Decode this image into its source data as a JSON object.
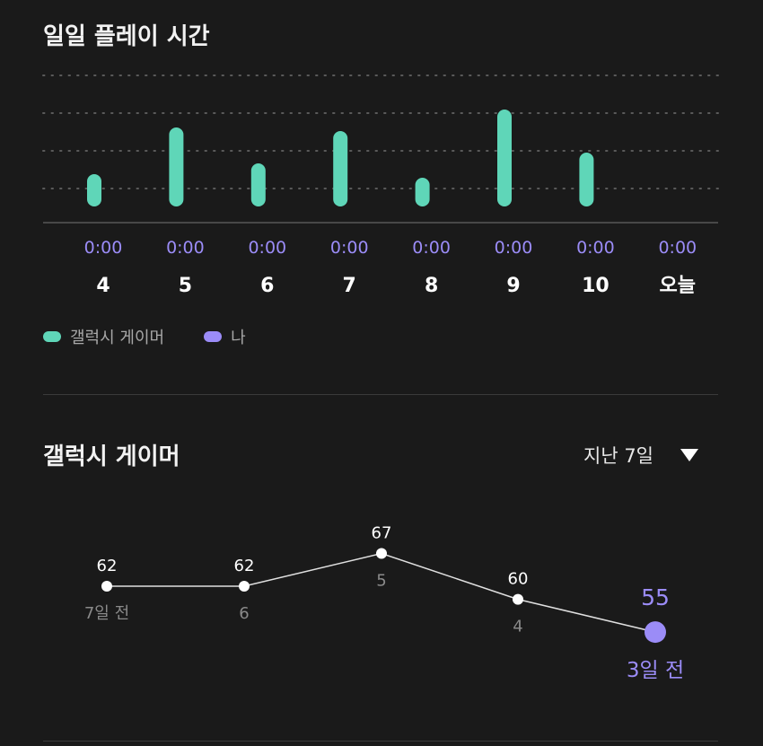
{
  "daily_title": "일일 플레이 시간",
  "legend": {
    "gamer_label": "갤럭시 게이머",
    "me_label": "나"
  },
  "gamer_title": "갤럭시 게이머",
  "period_select": {
    "selected": "지난 7일"
  },
  "colors": {
    "background": "#1a1a1a",
    "gamer": "#5fd6b8",
    "me": "#9b8cf7",
    "grid": "#5a5a5a"
  },
  "chart_data": [
    {
      "type": "bar",
      "categories": [
        "4",
        "5",
        "6",
        "7",
        "8",
        "9",
        "10",
        "오늘"
      ],
      "series": [
        {
          "name": "갤럭시 게이머",
          "values": [
            0.9,
            2.2,
            1.2,
            2.1,
            0.8,
            2.7,
            1.5,
            0
          ]
        }
      ],
      "my_time_labels": [
        "0:00",
        "0:00",
        "0:00",
        "0:00",
        "0:00",
        "0:00",
        "0:00",
        "0:00"
      ],
      "ylim": [
        0,
        4
      ],
      "grid": true,
      "legend_position": "bottom-left"
    },
    {
      "type": "line",
      "categories": [
        "7일 전",
        "6",
        "5",
        "4",
        "3일 전"
      ],
      "values": [
        62,
        62,
        67,
        60,
        55
      ],
      "ylim": [
        50,
        70
      ],
      "highlight_index": 4
    }
  ]
}
